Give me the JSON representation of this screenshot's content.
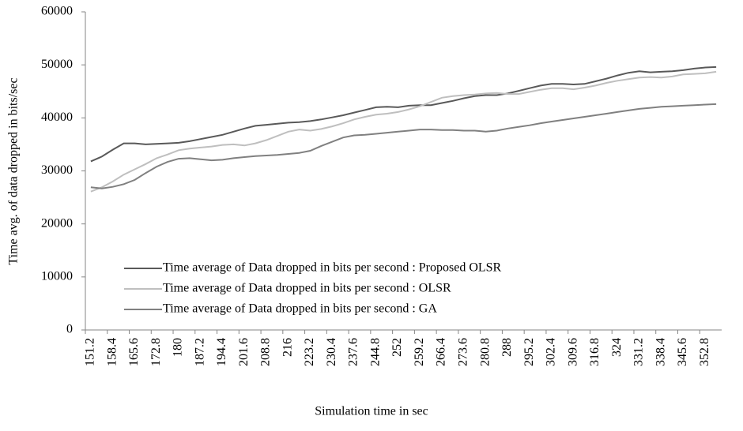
{
  "chart_data": {
    "type": "line",
    "y_label": "Time avg. of data dropped in bits/sec",
    "x_label": "Simulation time in sec",
    "categories": [
      "151.2",
      null,
      "158.4",
      null,
      "165.6",
      null,
      "172.8",
      null,
      "180",
      null,
      "187.2",
      null,
      "194.4",
      null,
      "201.6",
      null,
      "208.8",
      null,
      "216",
      null,
      "223.2",
      null,
      "230.4",
      null,
      "237.6",
      null,
      "244.8",
      null,
      "252",
      null,
      "259.2",
      null,
      "266.4",
      null,
      "273.6",
      null,
      "280.8",
      null,
      "288",
      null,
      "295.2",
      null,
      "302.4",
      null,
      "309.6",
      null,
      "316.8",
      null,
      "324",
      null,
      "331.2",
      null,
      "338.4",
      null,
      "345.6",
      null,
      "352.8",
      null
    ],
    "series": [
      {
        "name": "Time average of Data dropped in bits per second : Proposed OLSR",
        "color": "#595959",
        "values": [
          31800,
          32700,
          34000,
          35200,
          35200,
          35000,
          35100,
          35200,
          35300,
          35600,
          36000,
          36400,
          36800,
          37400,
          38000,
          38500,
          38700,
          38900,
          39100,
          39200,
          39400,
          39700,
          40100,
          40500,
          41000,
          41500,
          42000,
          42100,
          42000,
          42300,
          42400,
          42400,
          42800,
          43200,
          43700,
          44100,
          44300,
          44300,
          44600,
          45100,
          45600,
          46100,
          46400,
          46400,
          46300,
          46400,
          46900,
          47400,
          48000,
          48500,
          48800,
          48600,
          48700,
          48800,
          49000,
          49300,
          49500,
          49600
        ]
      },
      {
        "name": "Time average of Data dropped in bits per second : OLSR",
        "color": "#bfbfbf",
        "values": [
          26100,
          26900,
          28000,
          29300,
          30300,
          31300,
          32400,
          33100,
          33900,
          34200,
          34400,
          34600,
          34900,
          35000,
          34800,
          35200,
          35800,
          36600,
          37400,
          37800,
          37600,
          37900,
          38400,
          39000,
          39700,
          40200,
          40600,
          40800,
          41100,
          41600,
          42200,
          43000,
          43800,
          44100,
          44300,
          44400,
          44600,
          44700,
          44500,
          44500,
          44900,
          45300,
          45600,
          45600,
          45400,
          45700,
          46100,
          46600,
          47000,
          47300,
          47600,
          47700,
          47600,
          47800,
          48200,
          48300,
          48400,
          48700
        ]
      },
      {
        "name": "Time average of Data dropped in bits per second : GA",
        "color": "#808080",
        "values": [
          26900,
          26700,
          27000,
          27500,
          28300,
          29600,
          30800,
          31700,
          32300,
          32400,
          32200,
          32000,
          32100,
          32400,
          32600,
          32800,
          32900,
          33000,
          33200,
          33400,
          33800,
          34700,
          35500,
          36300,
          36700,
          36800,
          37000,
          37200,
          37400,
          37600,
          37800,
          37800,
          37700,
          37700,
          37600,
          37600,
          37400,
          37600,
          38000,
          38300,
          38600,
          39000,
          39300,
          39600,
          39900,
          40200,
          40500,
          40800,
          41100,
          41400,
          41700,
          41900,
          42100,
          42200,
          42300,
          42400,
          42500,
          42600
        ]
      }
    ],
    "ylim": [
      0,
      60000
    ],
    "yticks": [
      0,
      10000,
      20000,
      30000,
      40000,
      50000,
      60000
    ]
  }
}
